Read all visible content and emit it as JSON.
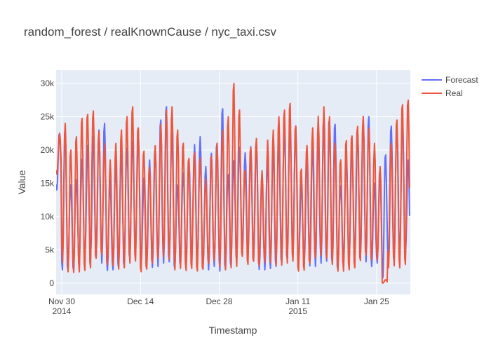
{
  "chart_data": {
    "type": "line",
    "title": "random_forest / realKnownCause / nyc_taxi.csv",
    "xlabel": "Timestamp",
    "ylabel": "Value",
    "x_range": [
      "2014-11-29",
      "2015-01-31"
    ],
    "ylim": [
      -1700,
      32000
    ],
    "x_ticks": [
      {
        "date": "2014-11-30",
        "label": "Nov 30",
        "sublabel": "2014"
      },
      {
        "date": "2014-12-14",
        "label": "Dec 14",
        "sublabel": ""
      },
      {
        "date": "2014-12-28",
        "label": "Dec 28",
        "sublabel": ""
      },
      {
        "date": "2015-01-11",
        "label": "Jan 11",
        "sublabel": "2015"
      },
      {
        "date": "2015-01-25",
        "label": "Jan 25",
        "sublabel": ""
      }
    ],
    "y_ticks": [
      {
        "value": 0,
        "label": "0"
      },
      {
        "value": 5000,
        "label": "5k"
      },
      {
        "value": 10000,
        "label": "10k"
      },
      {
        "value": 15000,
        "label": "15k"
      },
      {
        "value": 20000,
        "label": "20k"
      },
      {
        "value": 25000,
        "label": "25k"
      },
      {
        "value": 30000,
        "label": "30k"
      }
    ],
    "grid": true,
    "legend_position": "top-right",
    "series": [
      {
        "name": "Forecast",
        "color": "#636efa",
        "x": [
          "2014-11-29",
          "2014-11-30",
          "2014-12-01",
          "2014-12-02",
          "2014-12-03",
          "2014-12-04",
          "2014-12-05",
          "2014-12-06",
          "2014-12-07",
          "2014-12-08",
          "2014-12-09",
          "2014-12-10",
          "2014-12-11",
          "2014-12-12",
          "2014-12-13",
          "2014-12-14",
          "2014-12-15",
          "2014-12-16",
          "2014-12-17",
          "2014-12-18",
          "2014-12-19",
          "2014-12-20",
          "2014-12-21",
          "2014-12-22",
          "2014-12-23",
          "2014-12-24",
          "2014-12-25",
          "2014-12-26",
          "2014-12-27",
          "2014-12-28",
          "2014-12-29",
          "2014-12-30",
          "2014-12-31",
          "2015-01-01",
          "2015-01-02",
          "2015-01-03",
          "2015-01-04",
          "2015-01-05",
          "2015-01-06",
          "2015-01-07",
          "2015-01-08",
          "2015-01-09",
          "2015-01-10",
          "2015-01-11",
          "2015-01-12",
          "2015-01-13",
          "2015-01-14",
          "2015-01-15",
          "2015-01-16",
          "2015-01-17",
          "2015-01-18",
          "2015-01-19",
          "2015-01-20",
          "2015-01-21",
          "2015-01-22",
          "2015-01-23",
          "2015-01-24",
          "2015-01-25",
          "2015-01-26",
          "2015-01-27",
          "2015-01-28",
          "2015-01-29",
          "2015-01-30"
        ],
        "high": [
          22500,
          23500,
          15500,
          16500,
          19500,
          21000,
          22000,
          23000,
          24000,
          15500,
          18000,
          20000,
          21500,
          22500,
          23000,
          15800,
          18500,
          20500,
          24500,
          26500,
          23000,
          15500,
          17500,
          19500,
          21000,
          22000,
          17500,
          19500,
          21000,
          26500,
          17000,
          19500,
          21500,
          20000,
          20500,
          21000,
          15500,
          19000,
          20500,
          22000,
          24000,
          24500,
          24500,
          15200,
          19000,
          20500,
          22000,
          24500,
          25000,
          25000,
          15500,
          19500,
          21000,
          23000,
          24500,
          25000,
          15000,
          17000,
          20000,
          25000,
          25000,
          25200,
          18500
        ],
        "low": [
          14000,
          2000,
          2000,
          1800,
          1900,
          2000,
          2500,
          3500,
          3000,
          1900,
          2000,
          2200,
          2500,
          3200,
          3500,
          1800,
          2000,
          2200,
          2500,
          3000,
          3200,
          2200,
          2500,
          2000,
          2500,
          2000,
          1800,
          2000,
          2500,
          1800,
          2200,
          2500,
          3000,
          4500,
          3000,
          3000,
          2000,
          2000,
          2200,
          2500,
          3000,
          3200,
          3500,
          2000,
          2000,
          2200,
          2500,
          3000,
          3300,
          3000,
          2000,
          2000,
          2200,
          2500,
          3000,
          3200,
          2500,
          3000,
          800,
          2500,
          2800,
          2500,
          3000
        ]
      },
      {
        "name": "Real",
        "color": "#ef553b",
        "x": [
          "2014-11-29",
          "2014-11-30",
          "2014-12-01",
          "2014-12-02",
          "2014-12-03",
          "2014-12-04",
          "2014-12-05",
          "2014-12-06",
          "2014-12-07",
          "2014-12-08",
          "2014-12-09",
          "2014-12-10",
          "2014-12-11",
          "2014-12-12",
          "2014-12-13",
          "2014-12-14",
          "2014-12-15",
          "2014-12-16",
          "2014-12-17",
          "2014-12-18",
          "2014-12-19",
          "2014-12-20",
          "2014-12-21",
          "2014-12-22",
          "2014-12-23",
          "2014-12-24",
          "2014-12-25",
          "2014-12-26",
          "2014-12-27",
          "2014-12-28",
          "2014-12-29",
          "2014-12-30",
          "2014-12-31",
          "2015-01-01",
          "2015-01-02",
          "2015-01-03",
          "2015-01-04",
          "2015-01-05",
          "2015-01-06",
          "2015-01-07",
          "2015-01-08",
          "2015-01-09",
          "2015-01-10",
          "2015-01-11",
          "2015-01-12",
          "2015-01-13",
          "2015-01-14",
          "2015-01-15",
          "2015-01-16",
          "2015-01-17",
          "2015-01-18",
          "2015-01-19",
          "2015-01-20",
          "2015-01-21",
          "2015-01-22",
          "2015-01-23",
          "2015-01-24",
          "2015-01-25",
          "2015-01-26",
          "2015-01-27",
          "2015-01-28",
          "2015-01-29",
          "2015-01-30"
        ],
        "high": [
          22500,
          24000,
          20000,
          22000,
          25000,
          26500,
          27500,
          24000,
          21500,
          18500,
          21000,
          23000,
          25000,
          26500,
          24000,
          21000,
          18500,
          21500,
          24000,
          26000,
          26500,
          23000,
          21000,
          19000,
          20500,
          20000,
          16500,
          19500,
          21000,
          23000,
          25000,
          30000,
          26000,
          17500,
          21500,
          23000,
          17500,
          21500,
          23000,
          25000,
          26000,
          27000,
          24000,
          18000,
          22000,
          24500,
          25500,
          26500,
          25000,
          21000,
          18500,
          21500,
          23000,
          25000,
          26500,
          24000,
          21000,
          17500,
          500,
          21000,
          24500,
          27500,
          29000
        ],
        "low": [
          16000,
          2500,
          1700,
          1600,
          1700,
          1900,
          2300,
          3000,
          3200,
          1700,
          1800,
          2000,
          2300,
          3000,
          3300,
          1700,
          1800,
          2000,
          2300,
          2700,
          3000,
          2000,
          2200,
          1900,
          2200,
          1800,
          1500,
          1800,
          2200,
          1700,
          2000,
          2300,
          2500,
          4000,
          2800,
          2800,
          1800,
          1800,
          2000,
          2300,
          2700,
          3000,
          3300,
          1800,
          1800,
          2000,
          2300,
          2700,
          3000,
          2800,
          1800,
          1800,
          2000,
          2300,
          2700,
          3000,
          2300,
          2800,
          0,
          2300,
          2600,
          2300,
          2800
        ]
      }
    ]
  }
}
